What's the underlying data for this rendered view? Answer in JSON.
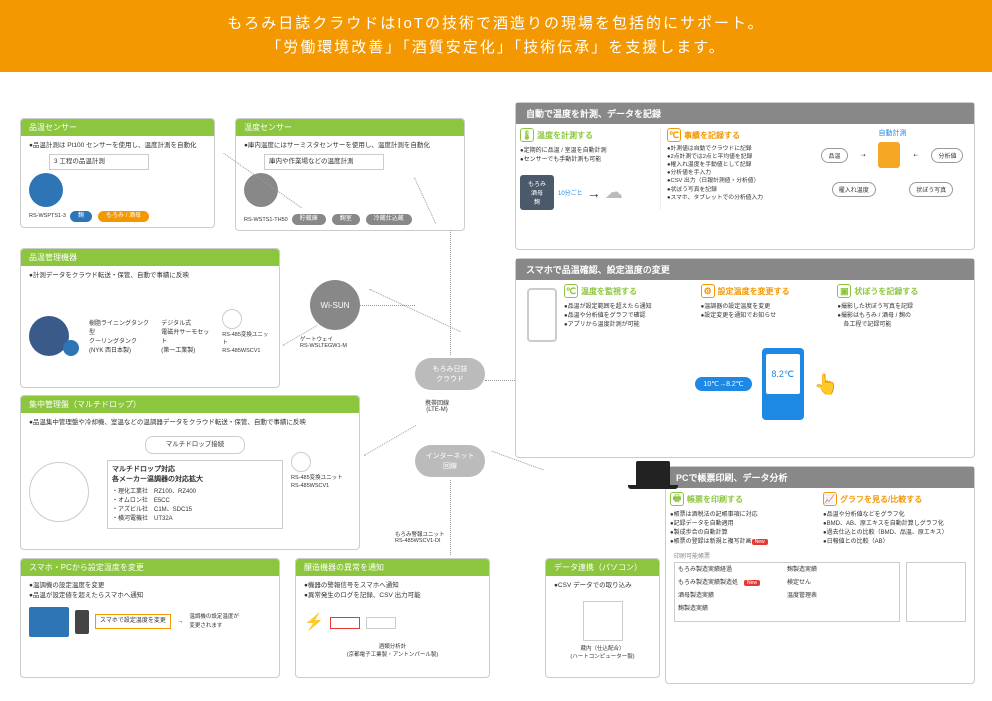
{
  "header": {
    "line1": "もろみ日誌クラウドはIoTの技術で酒造りの現場を包括的にサポート。",
    "line2": "「労働環境改善」「酒質安定化」「技術伝承」を支援します。"
  },
  "colors": {
    "orange": "#f39800",
    "green": "#8cc63f",
    "blue": "#2e75b6",
    "gray": "#888888",
    "lightBlue": "#1e88e5",
    "red": "#e53935"
  },
  "sensor1": {
    "title": "品温センサー",
    "desc": "●品温計測は Pt100 センサーを使用し、温度計測を自動化",
    "sub": "3 工程の品温計測",
    "model": "RS-WSPTS1-3",
    "tags": [
      "麹",
      "もろみ / 酒母"
    ]
  },
  "sensor2": {
    "title": "温度センサー",
    "desc": "●庫内温度にはサーミスタセンサーを使用し、温度計測を自動化",
    "sub": "庫内や作業場などの温度計測",
    "model": "RS-WSTS1-TH50",
    "tags": [
      "貯蔵庫",
      "麹室",
      "冷蔵仕込蔵"
    ]
  },
  "mgmt": {
    "title": "品温管理機器",
    "desc": "●計測データをクラウド転送・保管、自動で事績に反映",
    "item1": "樹脂ライニングタンク型\nクーリングタンク\n(NYK 西日本製)",
    "item2": "デジタル式\n電磁弁サーモセット\n(第一工業製)",
    "model": "RS-485変換ユニット\nRS-485WSCV1"
  },
  "multi": {
    "title": "集中管理盤（マルチドロップ）",
    "desc": "●品温集中管理盤や冷却機、室温などの温調器データをクラウド転送・保管、自動で事績に反映",
    "sub1": "マルチドロップ接続",
    "sub2title": "マルチドロップ対応\n各メーカー温調器の対応拡大",
    "makers": "・理化工業社　RZ100、RZ400\n・オムロン社　E5CC\n・アズビル社　C1M、SDC15\n・横河電機社　UT32A",
    "model": "RS-485変換ユニット\nRS-485WSCV1"
  },
  "smartpc": {
    "title": "スマホ・PCから設定温度を変更",
    "b1": "●温調機の設定温度を変更",
    "b2": "●品温が設定値を超えたらスマホへ通知",
    "note": "スマホで設定温度を変更",
    "note2": "温調機の設定温度が\n変更されます"
  },
  "alert": {
    "title": "醸造機器の異常を通知",
    "b1": "●機器の警報信号をスマホへ通知",
    "b2": "●異常発生のログを記録、CSV 出力可能",
    "item": "酒類分析計\n(京都電子工業製・アントンパール製)"
  },
  "datalink": {
    "title": "データ連携（パソコン）",
    "b1": "●CSV データでの取り込み",
    "item": "蔵内（仕込配合）\n(ハートコンピューター製)"
  },
  "wisun": "Wi-SUN",
  "gateway": "ゲートウェイ\nRS-WSLTEGW1-M",
  "cloud": "もろみ日誌\nクラウド",
  "lte": "携帯回線\n(LTE-M)",
  "internet": "インターネット\n回線",
  "monitor": "もろみ警報ユニット\nRS-485WSCV1-DI",
  "auto": {
    "title": "自動で温度を計測、データを記録",
    "c1title": "温度を計測する",
    "c1b1": "●定期的に品温 / 室温を自動計測",
    "c1b2": "●センサーでも手動計測も可能",
    "c2title": "事績を記録する",
    "c2list": [
      "●計測値は自動でクラウドに記録",
      "●2点計測では2点と平均値を記録",
      "●櫂入れ温度を手動値として記録",
      "●分析値を手入力",
      "●CSV 出力（日報計測値・分析値）",
      "●状ぼう写真を記録",
      "●スマホ、タブレットでの分析値入力"
    ],
    "autoLabel": "自動計測",
    "labels": [
      "品温",
      "分析値",
      "櫂入れ温度",
      "状ぼう写真"
    ],
    "boxLabel": "もろみ\n酒母\n麹",
    "interval": "10分ごと"
  },
  "smart": {
    "title": "スマホで品温確認、設定温度の変更",
    "c1": {
      "title": "温度を監視する",
      "b": [
        "●品温が設定範囲を超えたら通知",
        "●品温や分析値をグラフで確認",
        "●アプリから温度計測が可能"
      ]
    },
    "c2": {
      "title": "設定温度を変更する",
      "b": [
        "●温調器の設定温度を変更",
        "●設定変更を通知でお知らせ"
      ]
    },
    "c3": {
      "title": "状ぼうを記録する",
      "b": [
        "●撮影した状ぼう写真を記録",
        "●撮影はもろみ / 酒母 / 麹の\n　各工程で記録可能"
      ]
    },
    "temp": "8.2℃",
    "change": "10℃→8.2℃"
  },
  "pc": {
    "title": "PCで帳票印刷、データ分析",
    "c1": {
      "title": "帳票を印刷する",
      "b": [
        "●帳票は酒税法の記帳事項に対応",
        "●記録データを自動適用",
        "●製成歩合の自動計算",
        "●帳票の登録は新規と複写計画"
      ]
    },
    "c2": {
      "title": "グラフを見る/比較する",
      "b": [
        "●品温や分析値などをグラフ化",
        "●BMD、AB、原エキスを自動計算しグラフ化",
        "●過去仕込との比較（BMD、品温、原エキス）",
        "●日報値との比較（AB）"
      ]
    },
    "printTitle": "印刷可能帳票",
    "prints": [
      "もろみ製造実績経過",
      "麹製造実績",
      "もろみ製造実績製造処　",
      "検定せん",
      "酒母製造実績",
      "温度管理表",
      "麹製造実績",
      ""
    ],
    "newIdx": 2,
    "newLabel": "New"
  }
}
